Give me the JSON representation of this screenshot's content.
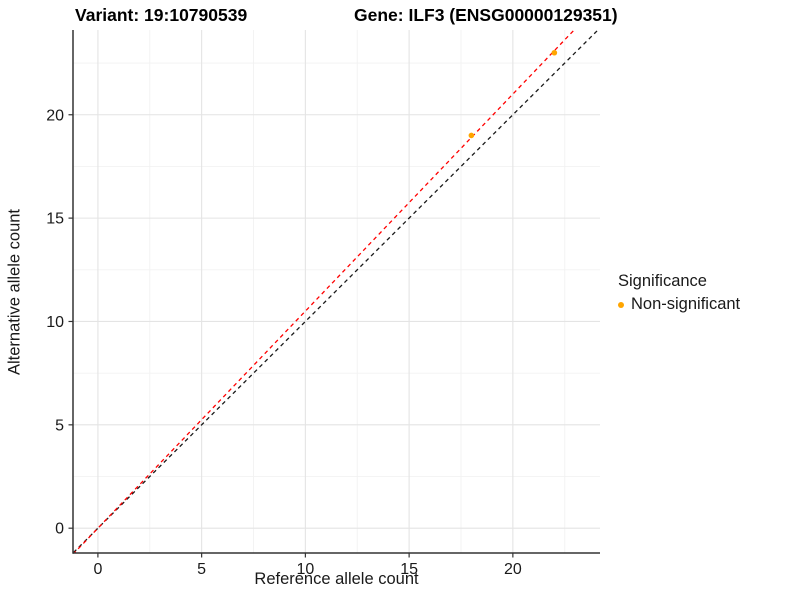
{
  "header": {
    "variant_title": "Variant: 19:10790539",
    "gene_title": "Gene: ILF3 (ENSG00000129351)"
  },
  "chart_data": {
    "type": "scatter",
    "title_left": "Variant: 19:10790539",
    "title_right": "Gene: ILF3 (ENSG00000129351)",
    "xlabel": "Reference allele count",
    "ylabel": "Alternative allele count",
    "x_ticks": [
      0,
      5,
      10,
      15,
      20
    ],
    "y_ticks": [
      0,
      5,
      10,
      15,
      20
    ],
    "xlim": [
      -1.2,
      24.2
    ],
    "ylim": [
      -1.2,
      24.1
    ],
    "grid": "major+minor",
    "points": [
      {
        "x": 18,
        "y": 19,
        "significance": "Non-significant"
      },
      {
        "x": 22,
        "y": 23,
        "significance": "Non-significant"
      }
    ],
    "point_color": "#FFA500",
    "lines": [
      {
        "name": "identity-line",
        "slope": 1,
        "intercept": 0,
        "style": "dashed",
        "color": "#1A1A1A"
      },
      {
        "name": "allelic-ratio-line",
        "slope": 1.05,
        "intercept": 0,
        "style": "dashed",
        "color": "#FF0000"
      }
    ],
    "legend": {
      "title": "Significance",
      "position": "right",
      "items": [
        {
          "label": "Non-significant",
          "color": "#FFA500"
        }
      ]
    },
    "colors": {
      "grid_major": "#E4E4E4",
      "grid_minor": "#F2F2F2",
      "axis_line": "#333333",
      "tick_label": "#1a1a1a",
      "background": "#FFFFFF"
    }
  }
}
